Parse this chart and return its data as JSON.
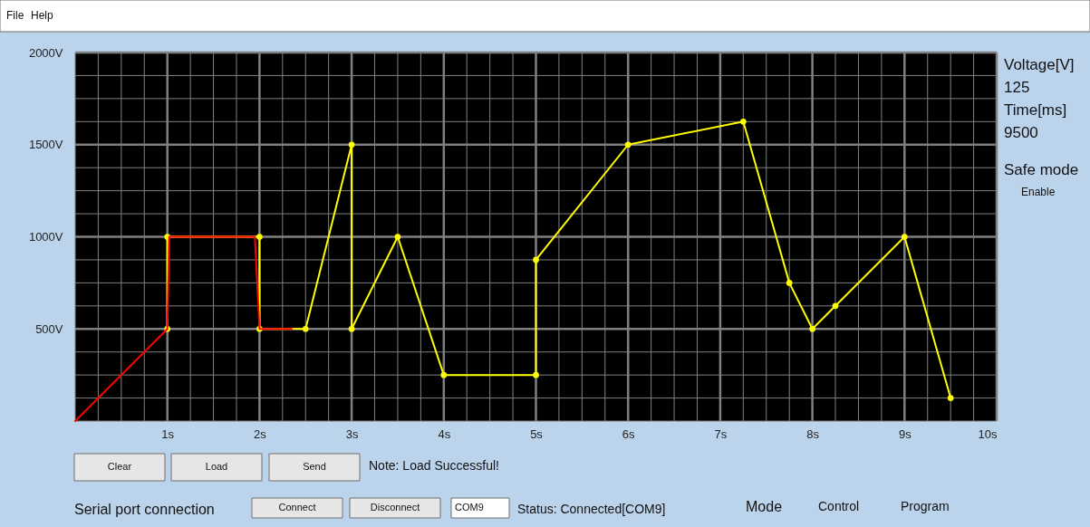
{
  "chart_data": {
    "type": "line",
    "xlim": [
      0,
      10
    ],
    "ylim": [
      0,
      2000
    ],
    "xticks": [
      {
        "value": 0,
        "label": null
      },
      {
        "value": 0.25,
        "label": null
      },
      {
        "value": 0.5,
        "label": null
      },
      {
        "value": 0.75,
        "label": null
      },
      {
        "value": 1,
        "label": "1s"
      },
      {
        "value": 1.25,
        "label": null
      },
      {
        "value": 1.5,
        "label": null
      },
      {
        "value": 1.75,
        "label": null
      },
      {
        "value": 2,
        "label": "2s"
      },
      {
        "value": 2.25,
        "label": null
      },
      {
        "value": 2.5,
        "label": null
      },
      {
        "value": 2.75,
        "label": null
      },
      {
        "value": 3,
        "label": "3s"
      },
      {
        "value": 3.25,
        "label": null
      },
      {
        "value": 3.5,
        "label": null
      },
      {
        "value": 3.75,
        "label": null
      },
      {
        "value": 4,
        "label": "4s"
      },
      {
        "value": 4.25,
        "label": null
      },
      {
        "value": 4.5,
        "label": null
      },
      {
        "value": 4.75,
        "label": null
      },
      {
        "value": 5,
        "label": "5s"
      },
      {
        "value": 5.25,
        "label": null
      },
      {
        "value": 5.5,
        "label": null
      },
      {
        "value": 5.75,
        "label": null
      },
      {
        "value": 6,
        "label": "6s"
      },
      {
        "value": 6.25,
        "label": null
      },
      {
        "value": 6.5,
        "label": null
      },
      {
        "value": 6.75,
        "label": null
      },
      {
        "value": 7,
        "label": "7s"
      },
      {
        "value": 7.25,
        "label": null
      },
      {
        "value": 7.5,
        "label": null
      },
      {
        "value": 7.75,
        "label": null
      },
      {
        "value": 8,
        "label": "8s"
      },
      {
        "value": 8.25,
        "label": null
      },
      {
        "value": 8.5,
        "label": null
      },
      {
        "value": 8.75,
        "label": null
      },
      {
        "value": 9,
        "label": "9s"
      },
      {
        "value": 9.25,
        "label": null
      },
      {
        "value": 9.5,
        "label": null
      },
      {
        "value": 9.75,
        "label": null
      },
      {
        "value": 10,
        "label": "10s"
      }
    ],
    "yticks": [
      {
        "value": 0,
        "label": null
      },
      {
        "value": 125,
        "label": null
      },
      {
        "value": 250,
        "label": null
      },
      {
        "value": 375,
        "label": null
      },
      {
        "value": 500,
        "label": "500V"
      },
      {
        "value": 625,
        "label": null
      },
      {
        "value": 750,
        "label": null
      },
      {
        "value": 875,
        "label": null
      },
      {
        "value": 1000,
        "label": "1000V"
      },
      {
        "value": 1125,
        "label": null
      },
      {
        "value": 1250,
        "label": null
      },
      {
        "value": 1375,
        "label": null
      },
      {
        "value": 1500,
        "label": "1500V"
      },
      {
        "value": 1625,
        "label": null
      },
      {
        "value": 1750,
        "label": null
      },
      {
        "value": 1875,
        "label": null
      },
      {
        "value": 2000,
        "label": "2000V"
      }
    ],
    "grid": true,
    "line_style": "solid",
    "series": [
      {
        "color": "#ffff00",
        "marker": "circle",
        "x": [
          1,
          1,
          2,
          2,
          2.5,
          3,
          3,
          3.5,
          4,
          5,
          5,
          6,
          7.25,
          7.75,
          8,
          8.25,
          9,
          9.5
        ],
        "values": [
          500,
          1000,
          1000,
          500,
          500,
          1500,
          500,
          1000,
          250,
          250,
          875,
          1500,
          1625,
          750,
          500,
          625,
          1000,
          125
        ]
      },
      {
        "color": "#ff0000",
        "marker": "none",
        "x": [
          0,
          1,
          1.02,
          1.95,
          2,
          2.35
        ],
        "values": [
          0,
          500,
          1000,
          1000,
          500,
          500
        ]
      }
    ],
    "annotations": [
      "File",
      "Help",
      "Voltage[V]",
      "125",
      "Time[ms]",
      "9500",
      "Safe mode",
      "Enable",
      "Clear",
      "Load",
      "Send",
      "Note: Load Successful!",
      "Serial port connection",
      "Connect",
      "Disconnect",
      "COM9",
      "Status: Connected[COM9]",
      "Mode",
      "Control",
      "Program"
    ]
  }
}
